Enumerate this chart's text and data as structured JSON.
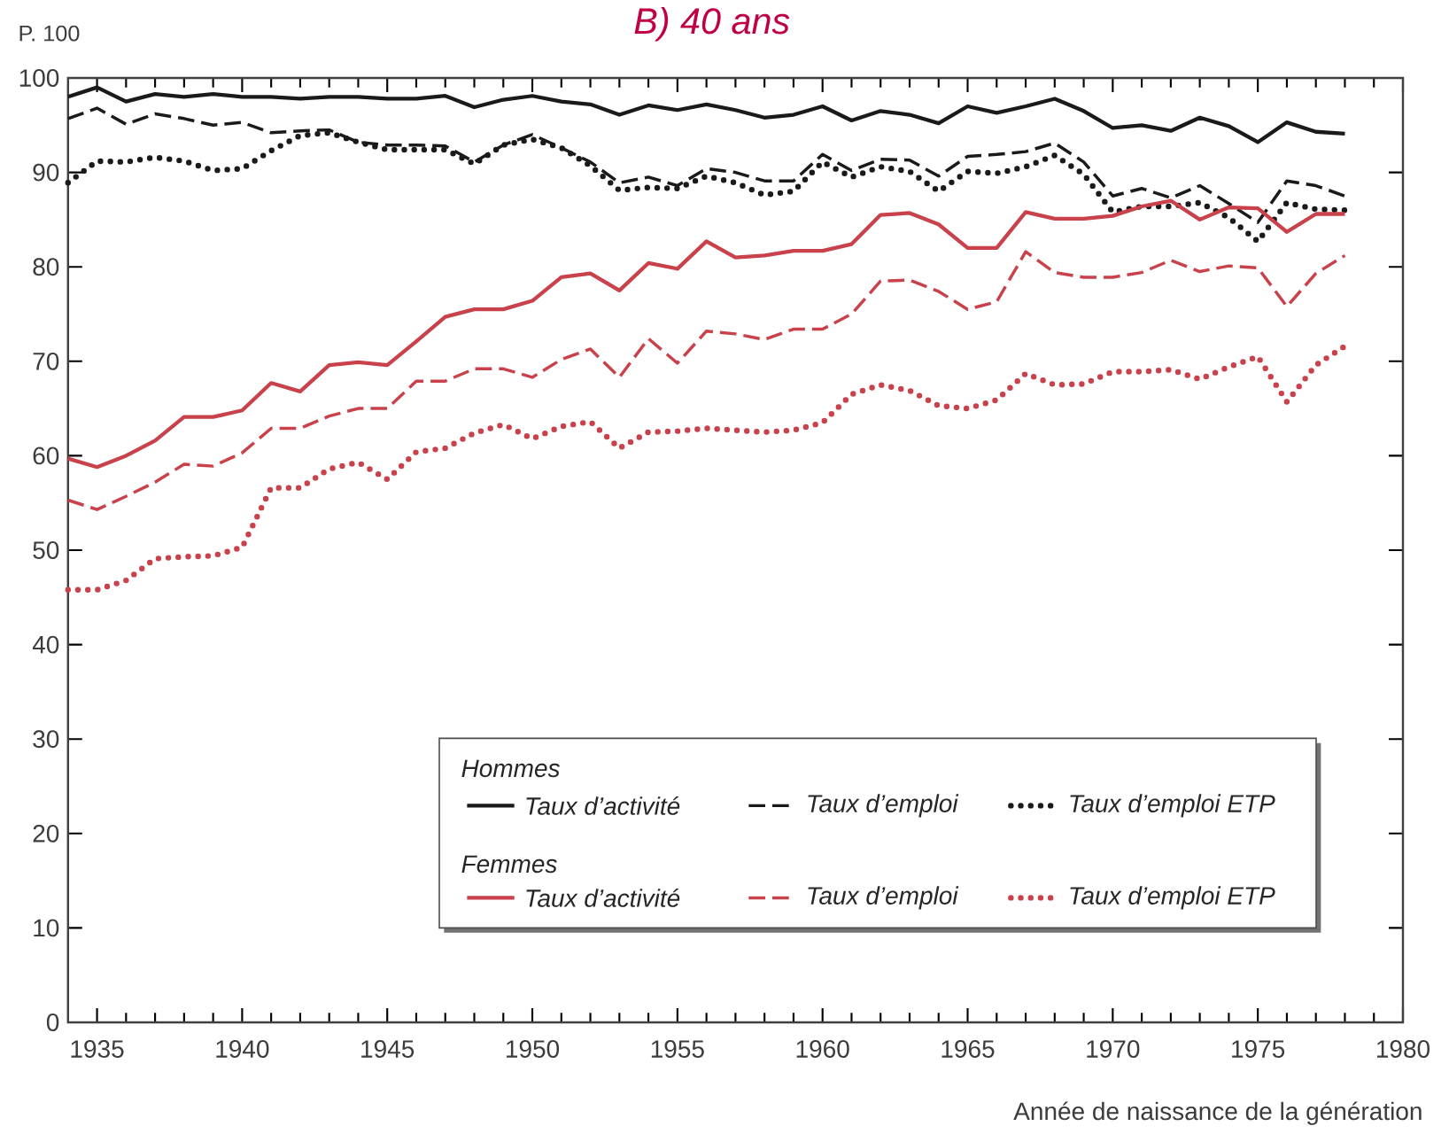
{
  "chart_data": {
    "type": "line",
    "title": "B) 40 ans",
    "xlabel": "Année de naissance de la génération",
    "ylabel": "P. 100",
    "x": [
      1934,
      1935,
      1936,
      1937,
      1938,
      1939,
      1940,
      1941,
      1942,
      1943,
      1944,
      1945,
      1946,
      1947,
      1948,
      1949,
      1950,
      1951,
      1952,
      1953,
      1954,
      1955,
      1956,
      1957,
      1958,
      1959,
      1960,
      1961,
      1962,
      1963,
      1964,
      1965,
      1966,
      1967,
      1968,
      1969,
      1970,
      1971,
      1972,
      1973,
      1974,
      1975,
      1976,
      1977,
      1978
    ],
    "xlim": [
      1934,
      1980
    ],
    "xticks": [
      1935,
      1940,
      1945,
      1950,
      1955,
      1960,
      1965,
      1970,
      1975,
      1980
    ],
    "ylim": [
      0,
      100
    ],
    "yticks": [
      0,
      10,
      20,
      30,
      40,
      50,
      60,
      70,
      80,
      90,
      100
    ],
    "legend": "bottom right",
    "annotations": [
      "Hommes",
      "Femmes"
    ],
    "series": [
      {
        "name": "Taux d’activité",
        "color": "#1a1a1a",
        "line_style": "solid",
        "values": [
          98,
          99,
          97.5,
          98.3,
          98,
          98.3,
          98,
          98,
          97.8,
          98,
          98,
          97.8,
          97.8,
          98.1,
          96.9,
          97.7,
          98.1,
          97.5,
          97.2,
          96.1,
          97.1,
          96.6,
          97.2,
          96.6,
          95.8,
          96.1,
          97.0,
          95.5,
          96.5,
          96.1,
          95.2,
          97.0,
          96.3,
          97.0,
          97.8,
          96.5,
          94.7,
          95.0,
          94.4,
          95.8,
          94.9,
          93.2,
          95.3,
          94.3,
          94.1
        ]
      },
      {
        "name": "Taux d’emploi",
        "color": "#1a1a1a",
        "line_style": "dashed",
        "values": [
          95.7,
          96.8,
          95.1,
          96.2,
          95.7,
          95.0,
          95.3,
          94.2,
          94.4,
          94.5,
          93.2,
          92.9,
          92.9,
          92.8,
          91.1,
          92.9,
          94.0,
          92.6,
          91.1,
          88.9,
          89.5,
          88.6,
          90.4,
          90.0,
          89.1,
          89.1,
          91.9,
          90.2,
          91.4,
          91.3,
          89.6,
          91.7,
          91.9,
          92.2,
          93.1,
          91.1,
          87.5,
          88.3,
          87.3,
          88.6,
          86.7,
          84.7,
          89.1,
          88.6,
          87.5
        ]
      },
      {
        "name": "Taux d’emploi ETP",
        "color": "#1a1a1a",
        "line_style": "dotted",
        "values": [
          88.9,
          91.2,
          91.1,
          91.6,
          91.2,
          90.2,
          90.4,
          92.3,
          93.9,
          94.2,
          93.2,
          92.4,
          92.4,
          92.4,
          90.9,
          92.9,
          93.5,
          92.6,
          90.7,
          88.1,
          88.4,
          88.3,
          89.6,
          88.9,
          87.6,
          88.0,
          91.1,
          89.5,
          90.6,
          90.1,
          88.0,
          90.1,
          89.9,
          90.6,
          91.8,
          89.8,
          85.8,
          86.4,
          86.4,
          86.8,
          85.2,
          82.7,
          86.8,
          86.1,
          86.0
        ]
      },
      {
        "name": "Taux d’activité",
        "color": "#c8414b",
        "line_style": "solid",
        "values": [
          59.7,
          58.8,
          60.0,
          61.6,
          64.1,
          64.1,
          64.8,
          67.7,
          66.8,
          69.6,
          69.9,
          69.6,
          72.1,
          74.7,
          75.5,
          75.5,
          76.4,
          78.9,
          79.3,
          77.5,
          80.4,
          79.8,
          82.7,
          81.0,
          81.2,
          81.7,
          81.7,
          82.4,
          85.5,
          85.7,
          84.5,
          82.0,
          82.0,
          85.8,
          85.1,
          85.1,
          85.4,
          86.4,
          87.0,
          85.0,
          86.3,
          86.2,
          83.7,
          85.6,
          85.6
        ]
      },
      {
        "name": "Taux d’emploi",
        "color": "#c8414b",
        "line_style": "dashed",
        "values": [
          55.3,
          54.3,
          55.7,
          57.2,
          59.1,
          58.9,
          60.3,
          62.9,
          62.9,
          64.2,
          65.0,
          65.0,
          67.9,
          67.9,
          69.2,
          69.2,
          68.3,
          70.2,
          71.3,
          68.3,
          72.4,
          69.8,
          73.2,
          72.9,
          72.3,
          73.4,
          73.4,
          75.0,
          78.5,
          78.6,
          77.4,
          75.5,
          76.3,
          81.6,
          79.4,
          78.9,
          78.9,
          79.4,
          80.7,
          79.5,
          80.1,
          79.9,
          75.8,
          79.3,
          81.2
        ]
      },
      {
        "name": "Taux d’emploi ETP",
        "color": "#c8414b",
        "line_style": "dotted",
        "values": [
          45.8,
          45.8,
          46.8,
          49.1,
          49.3,
          49.4,
          50.3,
          56.6,
          56.6,
          58.6,
          59.3,
          57.5,
          60.4,
          60.8,
          62.4,
          63.3,
          61.8,
          63.1,
          63.6,
          60.8,
          62.5,
          62.6,
          62.9,
          62.7,
          62.5,
          62.7,
          63.5,
          66.5,
          67.5,
          66.9,
          65.3,
          65.0,
          65.9,
          68.7,
          67.5,
          67.6,
          68.9,
          68.9,
          69.1,
          68.1,
          69.4,
          70.5,
          65.7,
          69.6,
          71.6
        ]
      }
    ]
  }
}
